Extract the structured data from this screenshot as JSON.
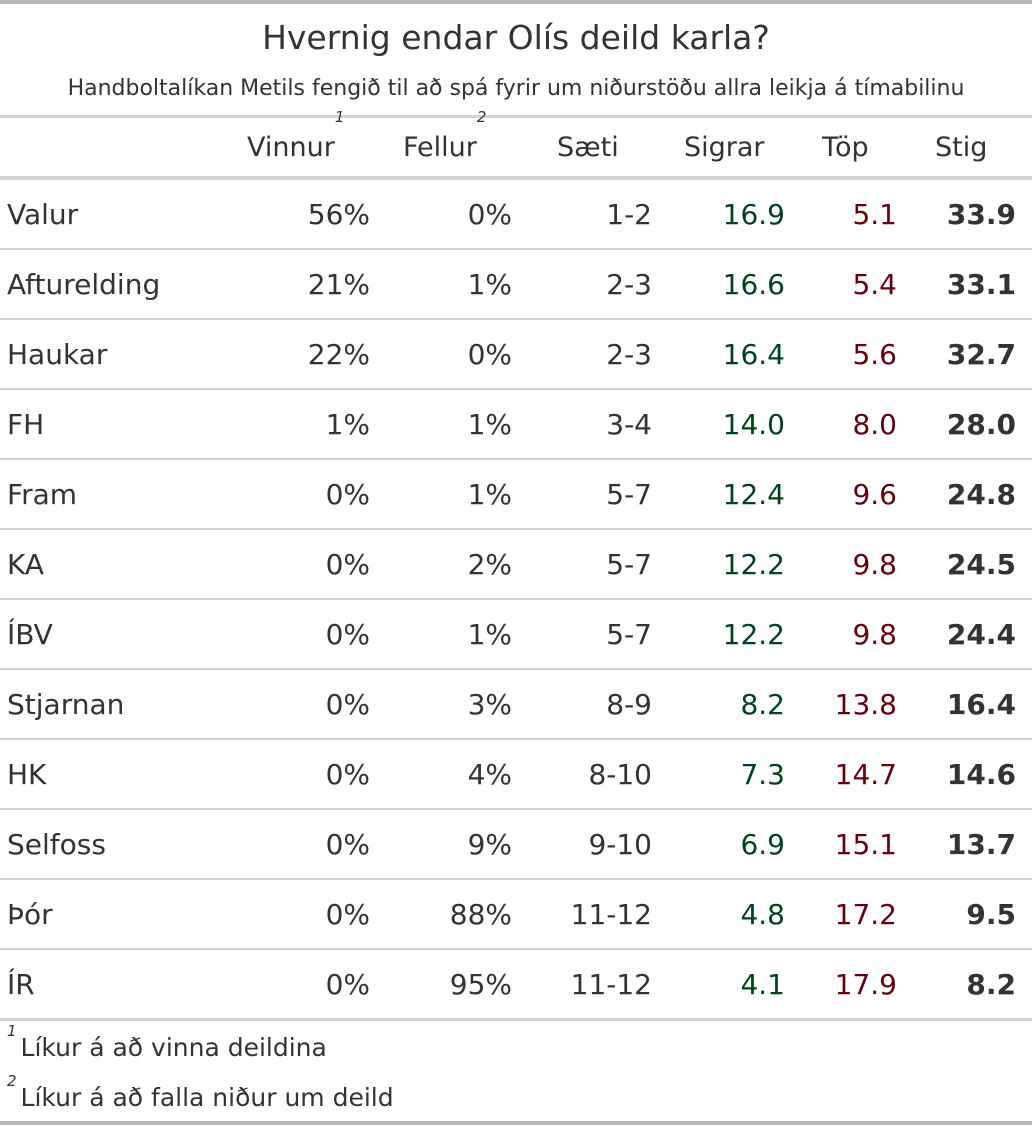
{
  "chart_data": {
    "type": "table",
    "title": "Hvernig endar Olís deild karla?",
    "subtitle": "Handboltalíkan Metils fengið til að spá fyrir um niðurstöðu allra leikja á tímabilinu",
    "columns": [
      {
        "key": "team",
        "label": ""
      },
      {
        "key": "win",
        "label": "Vinnur",
        "footnote_mark": "1"
      },
      {
        "key": "relegation",
        "label": "Fellur",
        "footnote_mark": "2"
      },
      {
        "key": "position",
        "label": "Sæti"
      },
      {
        "key": "wins",
        "label": "Sigrar"
      },
      {
        "key": "losses",
        "label": "Töp"
      },
      {
        "key": "points",
        "label": "Stig"
      }
    ],
    "rows": [
      {
        "team": "Valur",
        "win": "56%",
        "relegation": "0%",
        "position": "1-2",
        "wins": "16.9",
        "losses": "5.1",
        "points": "33.9"
      },
      {
        "team": "Afturelding",
        "win": "21%",
        "relegation": "1%",
        "position": "2-3",
        "wins": "16.6",
        "losses": "5.4",
        "points": "33.1"
      },
      {
        "team": "Haukar",
        "win": "22%",
        "relegation": "0%",
        "position": "2-3",
        "wins": "16.4",
        "losses": "5.6",
        "points": "32.7"
      },
      {
        "team": "FH",
        "win": "1%",
        "relegation": "1%",
        "position": "3-4",
        "wins": "14.0",
        "losses": "8.0",
        "points": "28.0"
      },
      {
        "team": "Fram",
        "win": "0%",
        "relegation": "1%",
        "position": "5-7",
        "wins": "12.4",
        "losses": "9.6",
        "points": "24.8"
      },
      {
        "team": "KA",
        "win": "0%",
        "relegation": "2%",
        "position": "5-7",
        "wins": "12.2",
        "losses": "9.8",
        "points": "24.5"
      },
      {
        "team": "ÍBV",
        "win": "0%",
        "relegation": "1%",
        "position": "5-7",
        "wins": "12.2",
        "losses": "9.8",
        "points": "24.4"
      },
      {
        "team": "Stjarnan",
        "win": "0%",
        "relegation": "3%",
        "position": "8-9",
        "wins": "8.2",
        "losses": "13.8",
        "points": "16.4"
      },
      {
        "team": "HK",
        "win": "0%",
        "relegation": "4%",
        "position": "8-10",
        "wins": "7.3",
        "losses": "14.7",
        "points": "14.6"
      },
      {
        "team": "Selfoss",
        "win": "0%",
        "relegation": "9%",
        "position": "9-10",
        "wins": "6.9",
        "losses": "15.1",
        "points": "13.7"
      },
      {
        "team": "Þór",
        "win": "0%",
        "relegation": "88%",
        "position": "11-12",
        "wins": "4.8",
        "losses": "17.2",
        "points": "9.5"
      },
      {
        "team": "ÍR",
        "win": "0%",
        "relegation": "95%",
        "position": "11-12",
        "wins": "4.1",
        "losses": "17.9",
        "points": "8.2"
      }
    ],
    "footnotes": [
      {
        "mark": "1",
        "text": "Líkur á að vinna deildina"
      },
      {
        "mark": "2",
        "text": "Líkur á að falla niður um deild"
      }
    ],
    "colors": {
      "wins": "#00441b",
      "losses": "#67000d",
      "text": "#333333",
      "rule": "#d3d3d3"
    }
  }
}
